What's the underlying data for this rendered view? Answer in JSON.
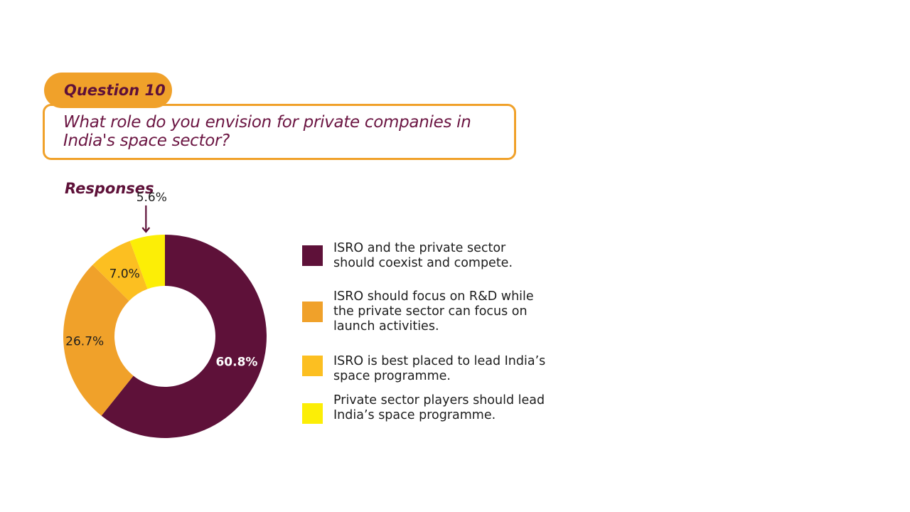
{
  "question": {
    "tag": "Question 10",
    "text": "What role do you envision for private companies in India's space sector?"
  },
  "responses_heading": "Responses",
  "colors": {
    "maroon": "#5e1139",
    "orange": "#f0a12a",
    "amber": "#fcbf21",
    "yellow": "#fcee06"
  },
  "chart_data": {
    "type": "pie",
    "subtype": "donut",
    "labels": [
      "ISRO and the private sector should coexist and compete.",
      "ISRO should focus on R&D while the private sector can focus on launch activities.",
      "ISRO is best placed to lead India’s space programme.",
      "Private sector players should lead India’s space programme."
    ],
    "values": [
      60.8,
      26.7,
      7.0,
      5.6
    ],
    "value_labels": [
      "60.8%",
      "26.7%",
      "7.0%",
      "5.6%"
    ],
    "colors": [
      "#5e1139",
      "#f0a12a",
      "#fcbf21",
      "#fcee06"
    ],
    "legend_position": "right",
    "title": "Responses"
  },
  "legend": [
    {
      "text": "ISRO and the private sector should coexist and compete.",
      "color": "#5e1139"
    },
    {
      "text": "ISRO should focus on R&D while the private sector can focus on launch activities.",
      "color": "#f0a12a"
    },
    {
      "text": "ISRO is best placed to lead India’s space programme.",
      "color": "#fcbf21"
    },
    {
      "text": "Private sector players should lead India’s space programme.",
      "color": "#fcee06"
    }
  ]
}
